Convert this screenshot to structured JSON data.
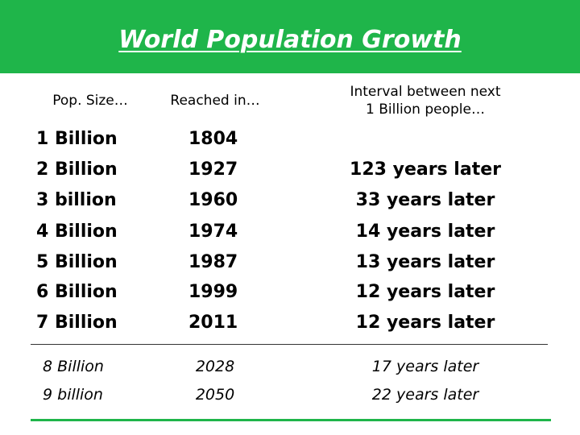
{
  "header": {
    "title": "World Population Growth"
  },
  "table": {
    "columns": [
      "Pop. Size…",
      "Reached in…",
      [
        "Interval between next",
        "1 Billion people…"
      ]
    ],
    "rows": [
      [
        "1 Billion",
        "1804"
      ],
      [
        "2 Billion",
        "1927",
        "123 years later"
      ],
      [
        "3 billion",
        "1960",
        "33 years later"
      ],
      [
        "4 Billion",
        "1974",
        "14 years later"
      ],
      [
        "5 Billion",
        "1987",
        "13 years later"
      ],
      [
        "6 Billion",
        "1999",
        "12 years later"
      ],
      [
        "7 Billion",
        "2011",
        "12 years later"
      ]
    ],
    "projected_rows": [
      [
        "8 Billion",
        "2028",
        "17 years later"
      ],
      [
        "9 billion",
        "2050",
        "22 years later"
      ]
    ]
  }
}
